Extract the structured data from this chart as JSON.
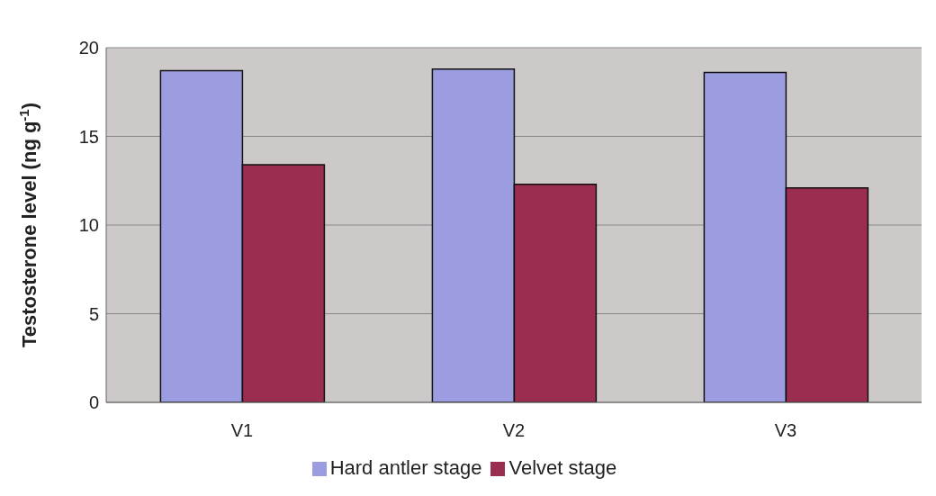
{
  "chart_data": {
    "type": "bar",
    "ylabel": "Testosterone level (ng g$^{-1}$)",
    "categories": [
      "V1",
      "V2",
      "V3"
    ],
    "series": [
      {
        "name": "Hard antler stage",
        "color": "#9c9ce0",
        "values": [
          18.7,
          18.8,
          18.6
        ]
      },
      {
        "name": "Velvet stage",
        "color": "#9b2d50",
        "values": [
          13.4,
          12.3,
          12.1
        ]
      }
    ],
    "ylim": [
      0,
      20
    ],
    "yticks": [
      0,
      5,
      10,
      15,
      20
    ],
    "grid": "y",
    "legend": "bottom"
  }
}
